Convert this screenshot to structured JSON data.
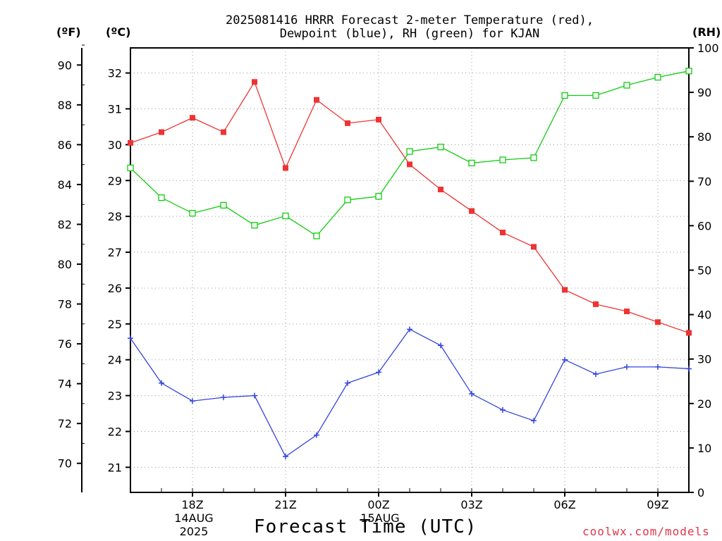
{
  "header": {
    "title_line1": "2025081416 HRRR Forecast 2-meter Temperature (red),",
    "title_line2": "Dewpoint (blue), RH (green) for KJAN"
  },
  "units": {
    "fahrenheit": "(ºF)",
    "celsius": "(ºC)",
    "rh": "(RH)"
  },
  "footer": {
    "xlabel": "Forecast Time (UTC)",
    "credit": "coolwx.com/models"
  },
  "date_labels": [
    {
      "line1": "14AUG",
      "line2": "2025"
    },
    {
      "line1": "15AUG",
      "line2": ""
    }
  ],
  "chart_data": {
    "type": "line",
    "title": "2025081416 HRRR Forecast 2-meter Temperature (red), Dewpoint (blue), RH (green) for KJAN",
    "xlabel": "Forecast Time (UTC)",
    "x": [
      "16Z",
      "17Z",
      "18Z",
      "19Z",
      "20Z",
      "21Z",
      "22Z",
      "23Z",
      "00Z",
      "01Z",
      "02Z",
      "03Z",
      "04Z",
      "05Z",
      "06Z",
      "07Z",
      "08Z",
      "09Z",
      "10Z"
    ],
    "x_tick_labels": [
      "18Z",
      "21Z",
      "00Z",
      "03Z",
      "06Z",
      "09Z"
    ],
    "celsius_axis": {
      "ylim": [
        20.3,
        32.7
      ],
      "ticks": [
        21,
        22,
        23,
        24,
        25,
        26,
        27,
        28,
        29,
        30,
        31,
        32
      ]
    },
    "fahrenheit_axis": {
      "ticks": [
        70,
        72,
        74,
        76,
        78,
        80,
        82,
        84,
        86,
        88,
        90
      ]
    },
    "rh_axis": {
      "ylim": [
        0,
        100
      ],
      "ticks": [
        0,
        10,
        20,
        30,
        40,
        50,
        60,
        70,
        80,
        90,
        100
      ]
    },
    "series": [
      {
        "color": "#ee3333",
        "marker": "filled-square",
        "axis": "celsius",
        "values": [
          30.05,
          30.35,
          30.75,
          30.35,
          31.75,
          29.35,
          31.25,
          30.6,
          30.7,
          29.45,
          28.75,
          28.15,
          27.55,
          27.15,
          25.95,
          25.55,
          25.35,
          25.05,
          24.75
        ]
      },
      {
        "color": "#3344dd",
        "marker": "plus",
        "axis": "celsius",
        "values": [
          24.6,
          23.35,
          22.85,
          22.95,
          23.0,
          21.3,
          21.9,
          23.35,
          23.65,
          24.85,
          24.4,
          23.05,
          22.6,
          22.3,
          24.0,
          23.6,
          23.8,
          23.8,
          23.75
        ]
      },
      {
        "color": "#11cc11",
        "marker": "open-square",
        "axis": "rh",
        "values": [
          73.0,
          66.3,
          62.8,
          64.6,
          60.1,
          62.2,
          57.7,
          65.8,
          66.6,
          76.7,
          77.7,
          74.1,
          74.8,
          75.3,
          89.3,
          89.3,
          91.6,
          93.4,
          94.8
        ]
      }
    ],
    "grid": true
  }
}
